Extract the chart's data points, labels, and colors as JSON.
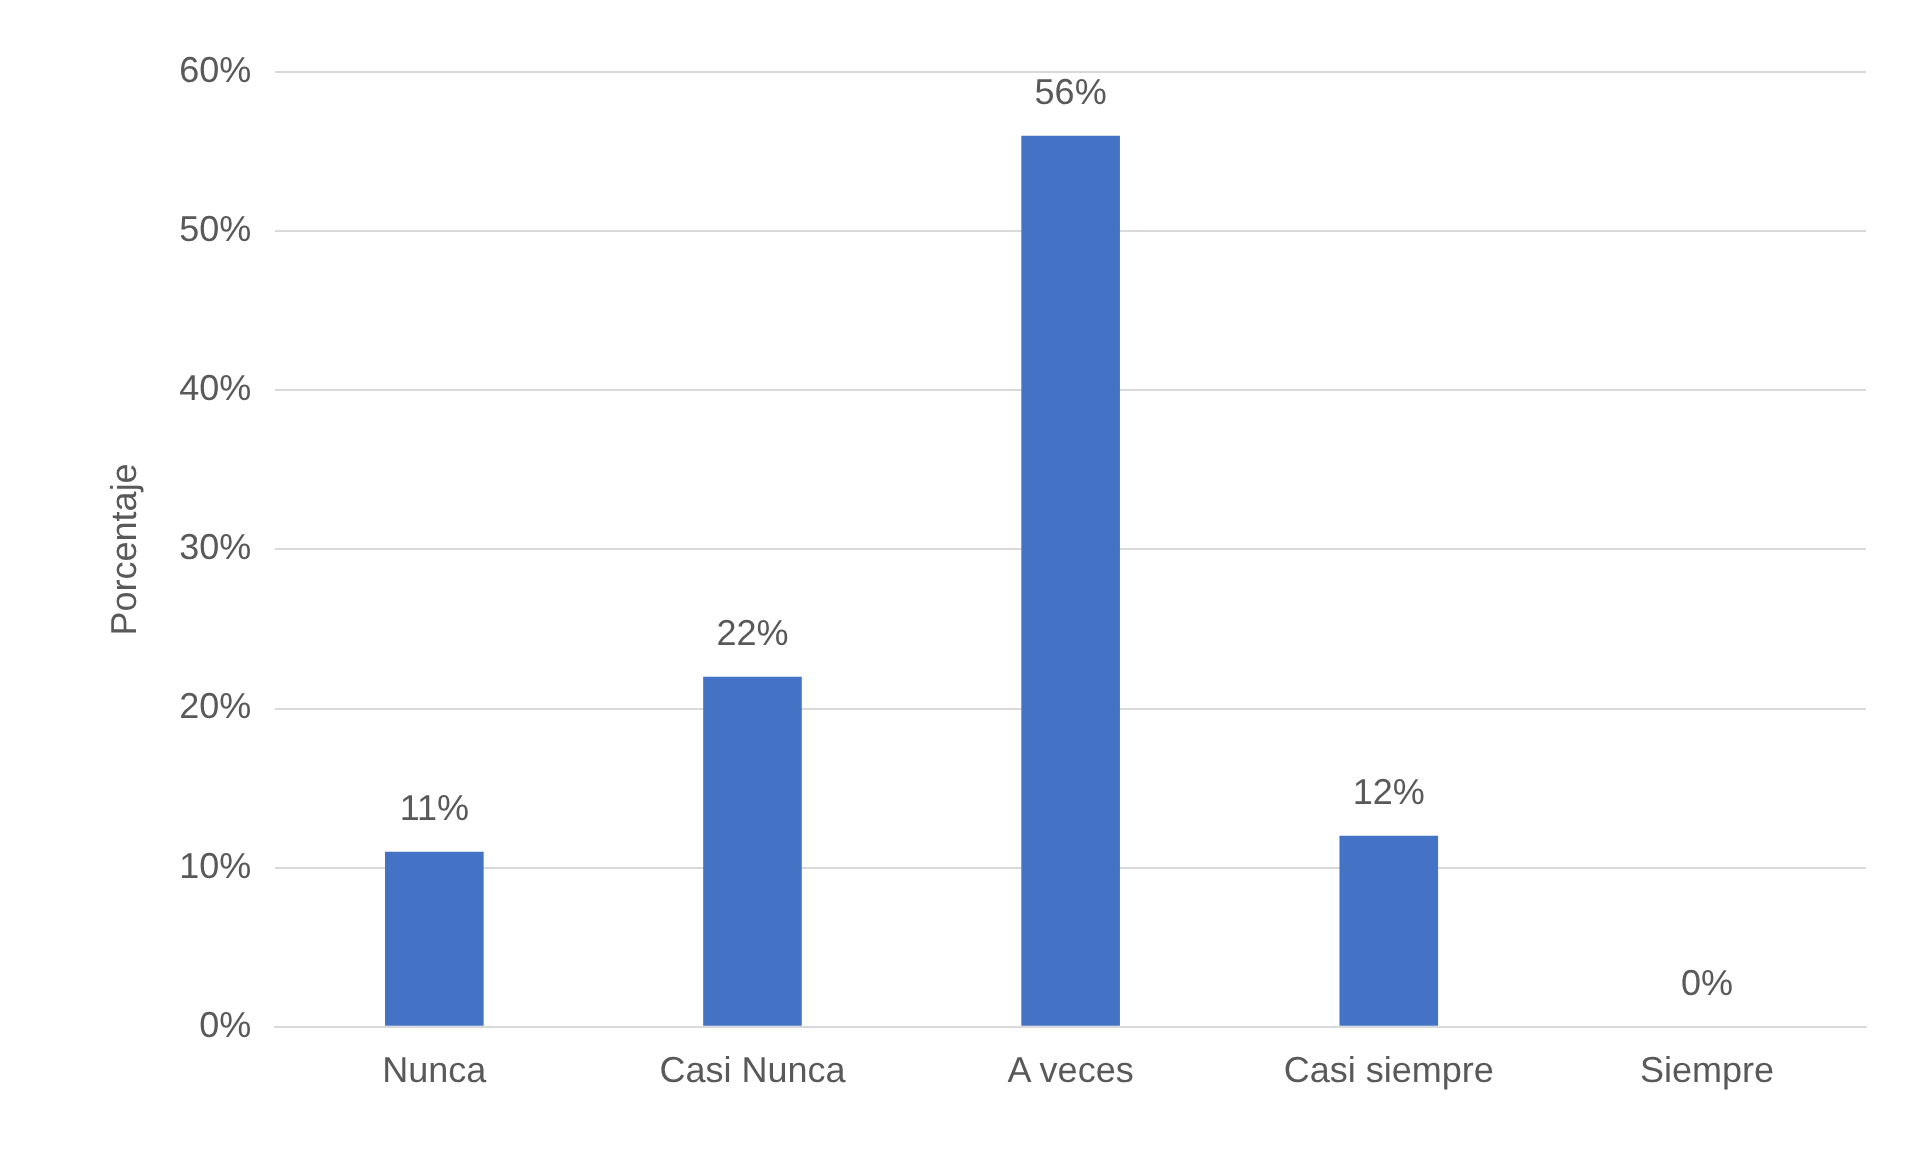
{
  "chart_data": {
    "type": "bar",
    "ylabel": "Porcentaje",
    "categories": [
      "Nunca",
      "Casi Nunca",
      "A veces",
      "Casi siempre",
      "Siempre"
    ],
    "values": [
      11,
      22,
      56,
      12,
      0
    ],
    "color": "#4472c4",
    "ylim": [
      0,
      60
    ],
    "yticks": [
      {
        "value": 0,
        "label": "0%"
      },
      {
        "value": 10,
        "label": "10%"
      },
      {
        "value": 20,
        "label": "20%"
      },
      {
        "value": 30,
        "label": "30%"
      },
      {
        "value": 40,
        "label": "40%"
      },
      {
        "value": 50,
        "label": "50%"
      },
      {
        "value": 60,
        "label": "60%"
      }
    ],
    "value_labels": [
      "11%",
      "22%",
      "56%",
      "12%",
      "0%"
    ],
    "grid": "y",
    "legend": false
  }
}
